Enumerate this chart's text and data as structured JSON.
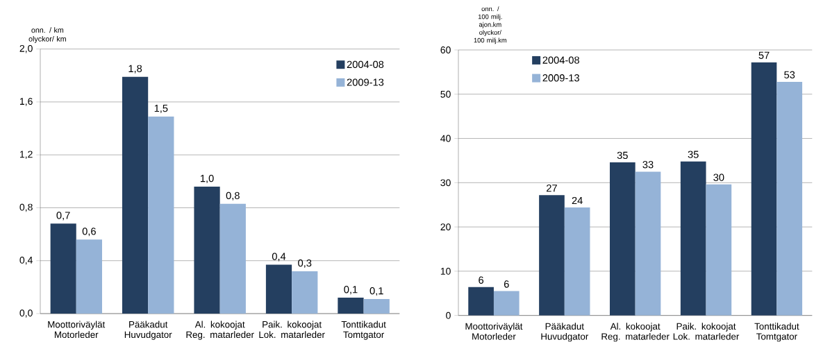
{
  "chart_data": [
    {
      "type": "bar",
      "ylabel": "onn. / km olyckor/ km",
      "categories": [
        "Moottoriväylät Motorleder",
        "Pääkadut Huvudgator",
        "Al. kokoojat Reg. matarleder",
        "Paik. kokoojat Lok. matarleder",
        "Tonttikadut Tomtgator"
      ],
      "series": [
        {
          "name": "2004-08",
          "color": "#243f60",
          "values": [
            0.68,
            1.79,
            0.96,
            0.37,
            0.12
          ],
          "value_labels": [
            "0,7",
            "1,8",
            "1,0",
            "0,4",
            "0,1"
          ]
        },
        {
          "name": "2009-13",
          "color": "#95b3d7",
          "values": [
            0.56,
            1.49,
            0.83,
            0.32,
            0.11
          ],
          "value_labels": [
            "0,6",
            "1,5",
            "0,8",
            "0,3",
            "0,1"
          ]
        }
      ],
      "ylim": [
        0,
        2
      ],
      "yticks": [
        {
          "value": 0,
          "label": "0,0"
        },
        {
          "value": 0.4,
          "label": "0,4"
        },
        {
          "value": 0.8,
          "label": "0,8"
        },
        {
          "value": 1.2,
          "label": "1,2"
        },
        {
          "value": 1.6,
          "label": "1,6"
        },
        {
          "value": 2,
          "label": "2,0"
        }
      ],
      "grid": "y",
      "legend": "top right"
    },
    {
      "type": "bar",
      "ylabel": "onn. / 100 milj. ajon.km olyckor/ 100 milj.km",
      "categories": [
        "Moottoriväylät Motorleder",
        "Pääkadut Huvudgator",
        "Al. kokoojat Reg. matarleder",
        "Paik. kokoojat Lok. matarleder",
        "Tonttikadut Tomtgator"
      ],
      "series": [
        {
          "name": "2004-08",
          "color": "#243f60",
          "values": [
            6.4,
            27.2,
            34.6,
            34.8,
            57.2
          ],
          "value_labels": [
            "6",
            "27",
            "35",
            "35",
            "57"
          ]
        },
        {
          "name": "2009-13",
          "color": "#95b3d7",
          "values": [
            5.5,
            24.4,
            32.5,
            29.6,
            52.8
          ],
          "value_labels": [
            "6",
            "24",
            "33",
            "30",
            "53"
          ]
        }
      ],
      "ylim": [
        0,
        60
      ],
      "yticks": [
        0,
        10,
        20,
        30,
        40,
        50,
        60
      ],
      "grid": "y",
      "legend": "top left"
    }
  ]
}
